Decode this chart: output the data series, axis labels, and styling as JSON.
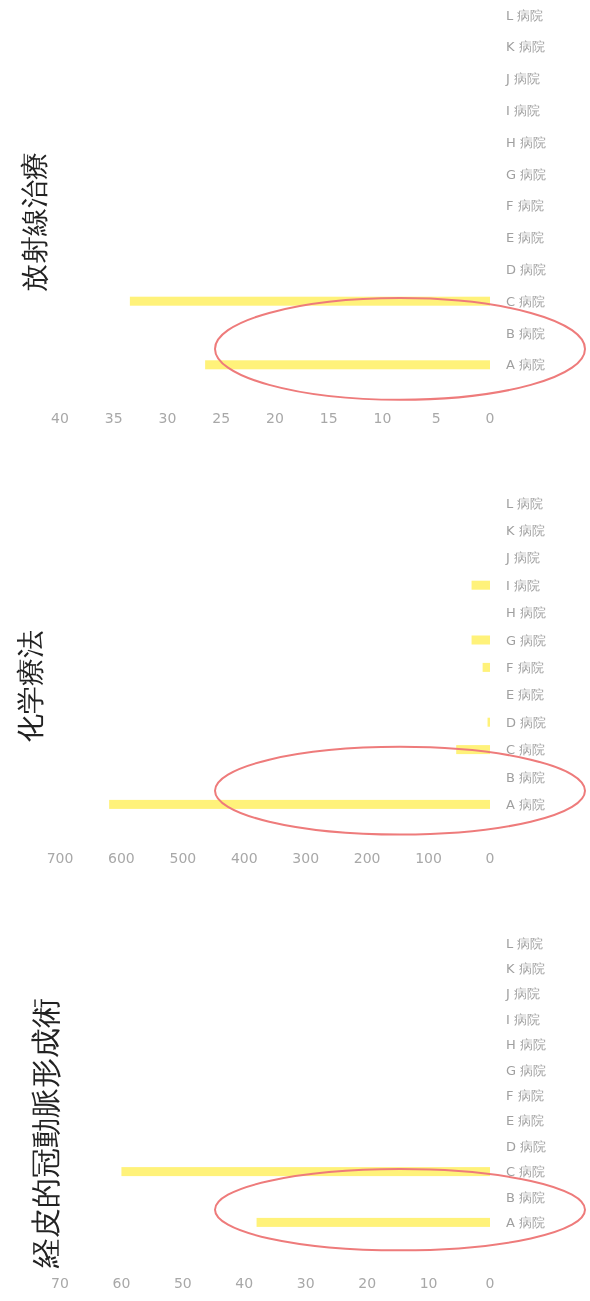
{
  "chart_data": [
    {
      "type": "bar",
      "orientation": "horizontal",
      "title": "経皮的冠動脈形成術",
      "categories": [
        "L 病院",
        "K 病院",
        "J 病院",
        "I 病院",
        "H 病院",
        "G 病院",
        "F 病院",
        "E 病院",
        "D 病院",
        "C 病院",
        "B 病院",
        "A 病院"
      ],
      "values": [
        null,
        null,
        null,
        null,
        null,
        null,
        null,
        null,
        null,
        60,
        null,
        38
      ],
      "color": "#fff27a",
      "xlim": [
        70,
        0
      ],
      "xticks": [
        70,
        60,
        50,
        40,
        30,
        20,
        10,
        0
      ]
    },
    {
      "type": "bar",
      "orientation": "horizontal",
      "title": "化学療法",
      "categories": [
        "L 病院",
        "K 病院",
        "J 病院",
        "I 病院",
        "H 病院",
        "G 病院",
        "F 病院",
        "E 病院",
        "D 病院",
        "C 病院",
        "B 病院",
        "A 病院"
      ],
      "values": [
        null,
        null,
        null,
        30,
        null,
        30,
        12,
        null,
        4,
        55,
        null,
        620
      ],
      "color": "#fff27a",
      "xlim": [
        700,
        0
      ],
      "xticks": [
        700,
        600,
        500,
        400,
        300,
        200,
        100,
        0
      ]
    },
    {
      "type": "bar",
      "orientation": "horizontal",
      "title": "放射線治療",
      "categories": [
        "L 病院",
        "K 病院",
        "J 病院",
        "I 病院",
        "H 病院",
        "G 病院",
        "F 病院",
        "E 病院",
        "D 病院",
        "C 病院",
        "B 病院",
        "A 病院"
      ],
      "values": [
        null,
        null,
        null,
        null,
        null,
        null,
        null,
        null,
        null,
        33.5,
        null,
        26.5
      ],
      "color": "#fff27a",
      "xlim": [
        40,
        0
      ],
      "xticks": [
        40,
        35,
        30,
        25,
        20,
        15,
        10,
        5,
        0
      ]
    }
  ]
}
